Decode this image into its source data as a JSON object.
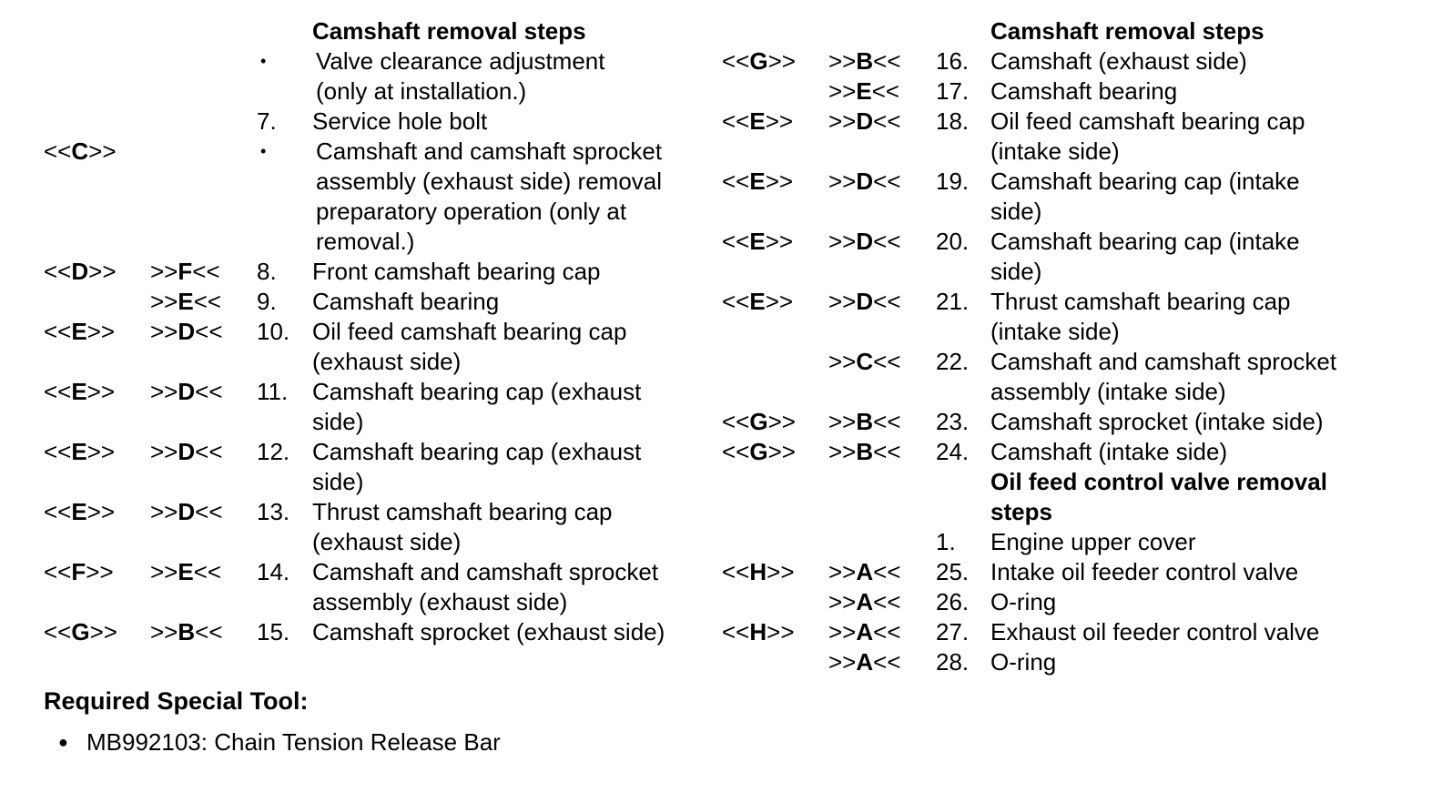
{
  "left_column": {
    "heading": "Camshaft removal steps",
    "rows": [
      {
        "ref1": "",
        "ref2": "",
        "num": "•",
        "text": [
          "Valve clearance adjustment",
          "(only at installation.)"
        ]
      },
      {
        "ref1": "",
        "ref2": "",
        "num": "7.",
        "text": [
          "Service hole bolt"
        ]
      },
      {
        "ref1": "<<C>>",
        "ref2": "",
        "num": "•",
        "text": [
          "Camshaft and camshaft sprocket",
          "assembly (exhaust side) removal",
          "preparatory operation (only at",
          "removal.)"
        ]
      },
      {
        "ref1": "<<D>>",
        "ref2": ">>F<<",
        "num": "8.",
        "text": [
          "Front camshaft bearing cap"
        ]
      },
      {
        "ref1": "",
        "ref2": ">>E<<",
        "num": "9.",
        "text": [
          "Camshaft bearing"
        ]
      },
      {
        "ref1": "<<E>>",
        "ref2": ">>D<<",
        "num": "10.",
        "text": [
          "Oil feed camshaft bearing cap",
          "(exhaust side)"
        ]
      },
      {
        "ref1": "<<E>>",
        "ref2": ">>D<<",
        "num": "11.",
        "text": [
          "Camshaft bearing cap (exhaust",
          "side)"
        ]
      },
      {
        "ref1": "<<E>>",
        "ref2": ">>D<<",
        "num": "12.",
        "text": [
          "Camshaft bearing cap (exhaust",
          "side)"
        ]
      },
      {
        "ref1": "<<E>>",
        "ref2": ">>D<<",
        "num": "13.",
        "text": [
          "Thrust camshaft bearing cap",
          "(exhaust side)"
        ]
      },
      {
        "ref1": "<<F>>",
        "ref2": ">>E<<",
        "num": "14.",
        "text": [
          "Camshaft and camshaft sprocket",
          "assembly (exhaust side)"
        ]
      },
      {
        "ref1": "<<G>>",
        "ref2": ">>B<<",
        "num": "15.",
        "text": [
          "Camshaft sprocket (exhaust side)"
        ]
      }
    ]
  },
  "right_column": {
    "heading": "Camshaft removal steps",
    "rows": [
      {
        "ref1": "<<G>>",
        "ref2": ">>B<<",
        "num": "16.",
        "text": [
          "Camshaft (exhaust side)"
        ]
      },
      {
        "ref1": "",
        "ref2": ">>E<<",
        "num": "17.",
        "text": [
          "Camshaft bearing"
        ]
      },
      {
        "ref1": "<<E>>",
        "ref2": ">>D<<",
        "num": "18.",
        "text": [
          "Oil feed camshaft bearing cap",
          "(intake side)"
        ]
      },
      {
        "ref1": "<<E>>",
        "ref2": ">>D<<",
        "num": "19.",
        "text": [
          "Camshaft bearing cap (intake",
          "side)"
        ]
      },
      {
        "ref1": "<<E>>",
        "ref2": ">>D<<",
        "num": "20.",
        "text": [
          "Camshaft bearing cap (intake",
          "side)"
        ]
      },
      {
        "ref1": "<<E>>",
        "ref2": ">>D<<",
        "num": "21.",
        "text": [
          "Thrust camshaft bearing cap",
          "(intake side)"
        ]
      },
      {
        "ref1": "",
        "ref2": ">>C<<",
        "num": "22.",
        "text": [
          "Camshaft and camshaft sprocket",
          "assembly (intake side)"
        ]
      },
      {
        "ref1": "<<G>>",
        "ref2": ">>B<<",
        "num": "23.",
        "text": [
          "Camshaft sprocket (intake side)"
        ]
      },
      {
        "ref1": "<<G>>",
        "ref2": ">>B<<",
        "num": "24.",
        "text": [
          "Camshaft (intake side)"
        ]
      }
    ],
    "heading2": [
      "Oil feed control valve removal",
      "steps"
    ],
    "rows2": [
      {
        "ref1": "",
        "ref2": "",
        "num": "1.",
        "text": [
          "Engine upper cover"
        ]
      },
      {
        "ref1": "<<H>>",
        "ref2": ">>A<<",
        "num": "25.",
        "text": [
          "Intake oil feeder control valve"
        ]
      },
      {
        "ref1": "",
        "ref2": ">>A<<",
        "num": "26.",
        "text": [
          "O-ring"
        ]
      },
      {
        "ref1": "<<H>>",
        "ref2": ">>A<<",
        "num": "27.",
        "text": [
          "Exhaust oil feeder control valve"
        ]
      },
      {
        "ref1": "",
        "ref2": ">>A<<",
        "num": "28.",
        "text": [
          "O-ring"
        ]
      }
    ]
  },
  "tools": {
    "heading": "Required Special Tool:",
    "items": [
      "MB992103: Chain Tension Release Bar"
    ]
  }
}
